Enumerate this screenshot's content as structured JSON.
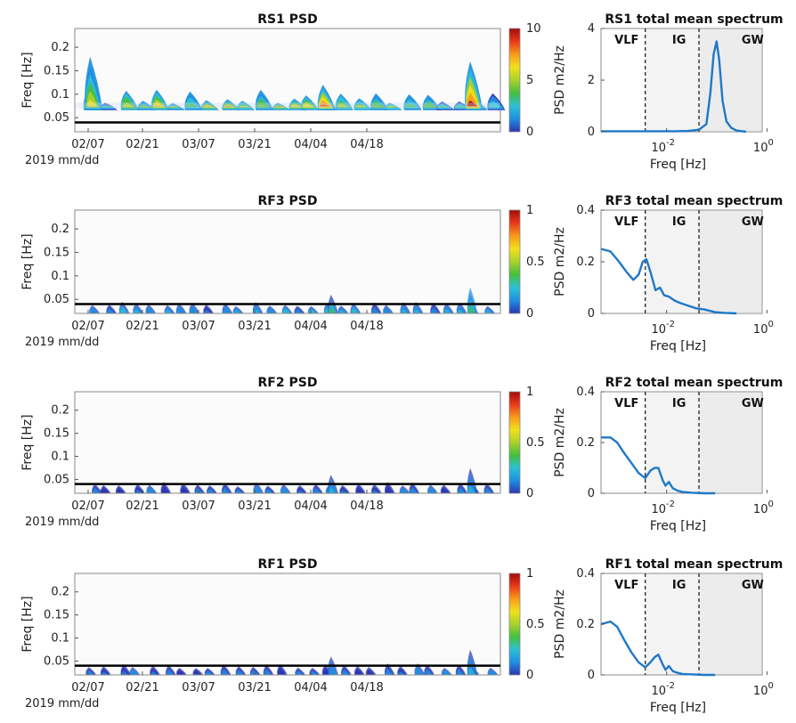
{
  "colors": {
    "colormap": [
      "#2a36b1",
      "#1f8fe0",
      "#2bc0d8",
      "#46bf3c",
      "#a9d12c",
      "#f2e11a",
      "#f79a1c",
      "#e83a1a",
      "#a10c0c"
    ],
    "spectrum_line": "#1f78c8",
    "threshold_line": "#000000"
  },
  "chart_data": [
    {
      "type": "heatmap",
      "title": "RS1 PSD",
      "ylabel": "Freq [Hz]",
      "xlabel": "2019 mm/dd",
      "x_ticks": [
        "02/07",
        "02/21",
        "03/07",
        "03/21",
        "04/04",
        "04/18"
      ],
      "y_ticks": [
        "0.05",
        "0.1",
        "0.15",
        "0.2"
      ],
      "ylim": [
        0.02,
        0.24
      ],
      "threshold_freq": 0.04,
      "colorbar_ticks": [
        "0",
        "5",
        "10"
      ],
      "clim": [
        0,
        10
      ]
    },
    {
      "type": "line",
      "title": "RS1 total mean spectrum",
      "ylabel": "PSD m2/Hz",
      "xlabel": "Freq [Hz]",
      "x_scale": "log",
      "x_ticks": [
        "10^-2",
        "10^0"
      ],
      "y_ticks": [
        "0",
        "2",
        "4"
      ],
      "ylim": [
        0,
        4
      ],
      "bands": [
        "VLF",
        "IG",
        "GW"
      ],
      "band_edges_hz": [
        0.004,
        0.04
      ],
      "series": [
        {
          "x": [
            0.0006,
            0.001,
            0.002,
            0.004,
            0.008,
            0.015,
            0.025,
            0.04,
            0.055,
            0.065,
            0.075,
            0.085,
            0.095,
            0.11,
            0.13,
            0.16,
            0.2,
            0.3
          ],
          "y": [
            0.02,
            0.02,
            0.02,
            0.02,
            0.02,
            0.02,
            0.03,
            0.08,
            0.3,
            1.5,
            3.0,
            3.5,
            2.8,
            1.2,
            0.4,
            0.15,
            0.05,
            0.0
          ]
        }
      ]
    },
    {
      "type": "heatmap",
      "title": "RF3 PSD",
      "ylabel": "Freq [Hz]",
      "xlabel": "2019 mm/dd",
      "x_ticks": [
        "02/07",
        "02/21",
        "03/07",
        "03/21",
        "04/04",
        "04/18"
      ],
      "y_ticks": [
        "0.05",
        "0.1",
        "0.15",
        "0.2"
      ],
      "ylim": [
        0.02,
        0.24
      ],
      "threshold_freq": 0.04,
      "colorbar_ticks": [
        "0",
        "0.5",
        "1"
      ],
      "clim": [
        0,
        1
      ]
    },
    {
      "type": "line",
      "title": "RF3 total mean spectrum",
      "ylabel": "PSD m2/Hz",
      "xlabel": "Freq [Hz]",
      "x_scale": "log",
      "x_ticks": [
        "10^-2",
        "10^0"
      ],
      "y_ticks": [
        "0",
        "0.2",
        "0.4"
      ],
      "ylim": [
        0,
        0.4
      ],
      "bands": [
        "VLF",
        "IG",
        "GW"
      ],
      "band_edges_hz": [
        0.004,
        0.04
      ],
      "series": [
        {
          "x": [
            0.0006,
            0.0009,
            0.0013,
            0.0018,
            0.0024,
            0.003,
            0.0036,
            0.0042,
            0.005,
            0.0062,
            0.0075,
            0.009,
            0.011,
            0.014,
            0.018,
            0.025,
            0.035,
            0.05,
            0.08,
            0.12,
            0.2
          ],
          "y": [
            0.25,
            0.24,
            0.2,
            0.16,
            0.13,
            0.15,
            0.2,
            0.21,
            0.16,
            0.09,
            0.1,
            0.07,
            0.065,
            0.05,
            0.04,
            0.03,
            0.02,
            0.015,
            0.005,
            0.002,
            0.0
          ]
        }
      ]
    },
    {
      "type": "heatmap",
      "title": "RF2 PSD",
      "ylabel": "Freq [Hz]",
      "xlabel": "2019 mm/dd",
      "x_ticks": [
        "02/07",
        "02/21",
        "03/07",
        "03/21",
        "04/04",
        "04/18"
      ],
      "y_ticks": [
        "0.05",
        "0.1",
        "0.15",
        "0.2"
      ],
      "ylim": [
        0.02,
        0.24
      ],
      "threshold_freq": 0.04,
      "colorbar_ticks": [
        "0",
        "0.5",
        "1"
      ],
      "clim": [
        0,
        1
      ]
    },
    {
      "type": "line",
      "title": "RF2 total mean spectrum",
      "ylabel": "PSD m2/Hz",
      "xlabel": "Freq [Hz]",
      "x_scale": "log",
      "x_ticks": [
        "10^-2",
        "10^0"
      ],
      "y_ticks": [
        "0",
        "0.2",
        "0.4"
      ],
      "ylim": [
        0,
        0.4
      ],
      "bands": [
        "VLF",
        "IG",
        "GW"
      ],
      "band_edges_hz": [
        0.004,
        0.04
      ],
      "series": [
        {
          "x": [
            0.0006,
            0.0009,
            0.0012,
            0.0016,
            0.0022,
            0.003,
            0.004,
            0.005,
            0.006,
            0.007,
            0.0085,
            0.0095,
            0.011,
            0.013,
            0.016,
            0.02,
            0.03,
            0.05,
            0.08
          ],
          "y": [
            0.22,
            0.22,
            0.2,
            0.16,
            0.12,
            0.08,
            0.06,
            0.09,
            0.1,
            0.1,
            0.05,
            0.03,
            0.045,
            0.02,
            0.01,
            0.005,
            0.002,
            0.0,
            0.0
          ]
        }
      ]
    },
    {
      "type": "heatmap",
      "title": "RF1 PSD",
      "ylabel": "Freq [Hz]",
      "xlabel": "2019 mm/dd",
      "x_ticks": [
        "02/07",
        "02/21",
        "03/07",
        "03/21",
        "04/04",
        "04/18"
      ],
      "y_ticks": [
        "0.05",
        "0.1",
        "0.15",
        "0.2"
      ],
      "ylim": [
        0.02,
        0.24
      ],
      "threshold_freq": 0.04,
      "colorbar_ticks": [
        "0",
        "0.5",
        "1"
      ],
      "clim": [
        0,
        1
      ]
    },
    {
      "type": "line",
      "title": "RF1 total mean spectrum",
      "ylabel": "PSD m2/Hz",
      "xlabel": "Freq [Hz]",
      "x_scale": "log",
      "x_ticks": [
        "10^-2",
        "10^0"
      ],
      "y_ticks": [
        "0",
        "0.2",
        "0.4"
      ],
      "ylim": [
        0,
        0.4
      ],
      "bands": [
        "VLF",
        "IG",
        "GW"
      ],
      "band_edges_hz": [
        0.004,
        0.04
      ],
      "series": [
        {
          "x": [
            0.0006,
            0.0009,
            0.0012,
            0.0016,
            0.0022,
            0.003,
            0.004,
            0.005,
            0.006,
            0.007,
            0.0085,
            0.0095,
            0.011,
            0.013,
            0.016,
            0.02,
            0.03,
            0.05,
            0.08
          ],
          "y": [
            0.2,
            0.21,
            0.19,
            0.14,
            0.09,
            0.05,
            0.03,
            0.05,
            0.07,
            0.08,
            0.04,
            0.02,
            0.035,
            0.015,
            0.008,
            0.004,
            0.002,
            0.0,
            0.0
          ]
        }
      ]
    }
  ]
}
